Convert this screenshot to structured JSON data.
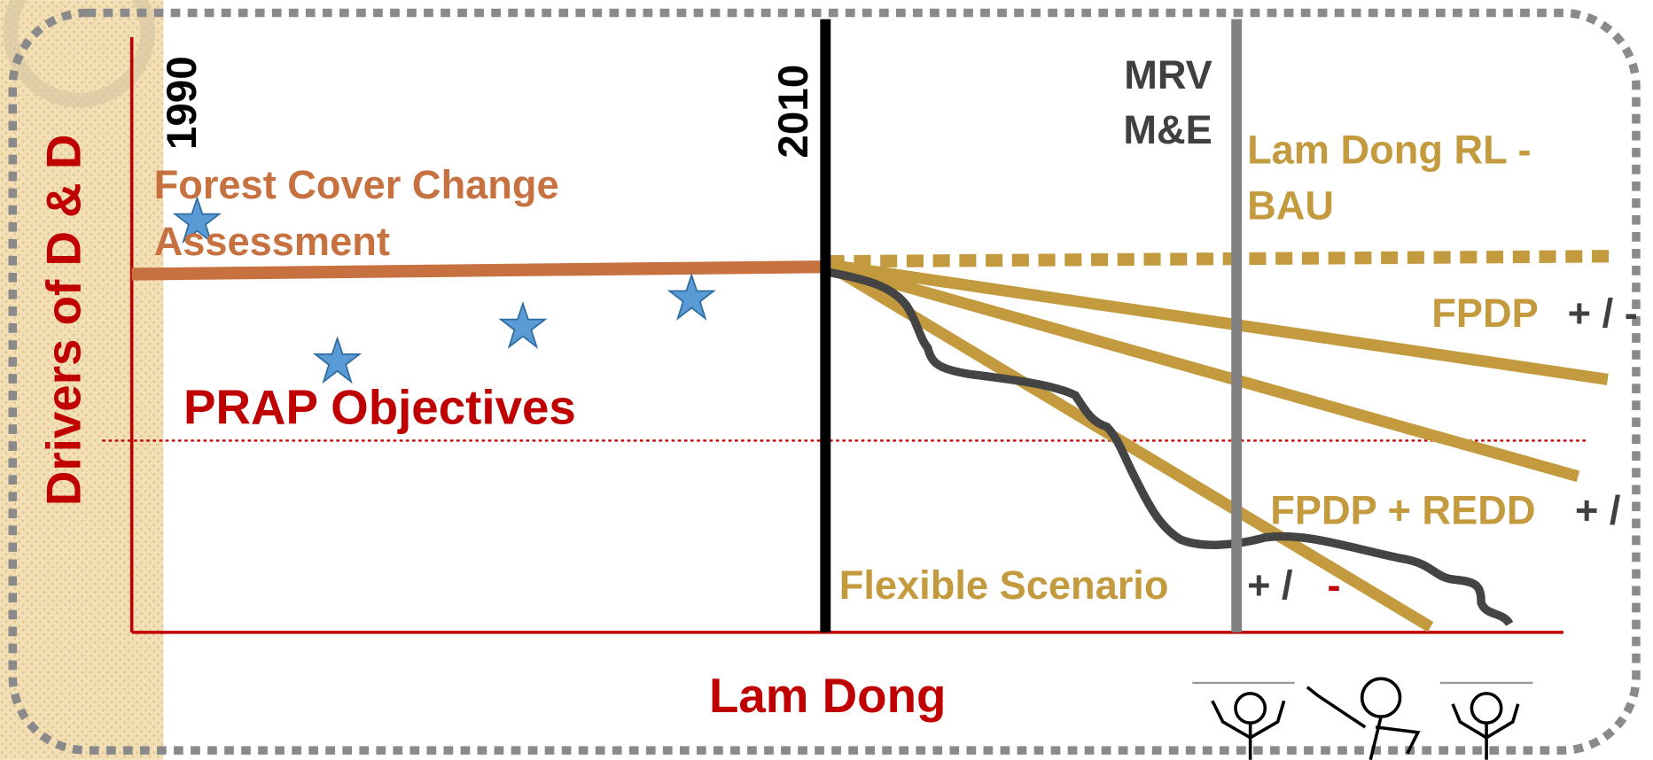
{
  "axis": {
    "y_label": "Drivers of D & D",
    "x_label": "Lam Dong"
  },
  "milestones": {
    "start": "1990",
    "now": "2010",
    "monitoring": [
      "MRV",
      "M&E"
    ]
  },
  "labels": {
    "forest_cover": [
      "Forest Cover Change",
      "Assessment"
    ],
    "baseline": [
      "Lam Dong RL -",
      "BAU"
    ],
    "fpdp": "FPDP",
    "fpdp_sign": "+ / -",
    "prap": "PRAP Objectives",
    "fpdp_redd": "FPDP + REDD",
    "fpdp_redd_sign": "+ /",
    "flexible": "Flexible Scenario",
    "flexible_sign": "+ /",
    "flexible_minus": "-"
  }
}
